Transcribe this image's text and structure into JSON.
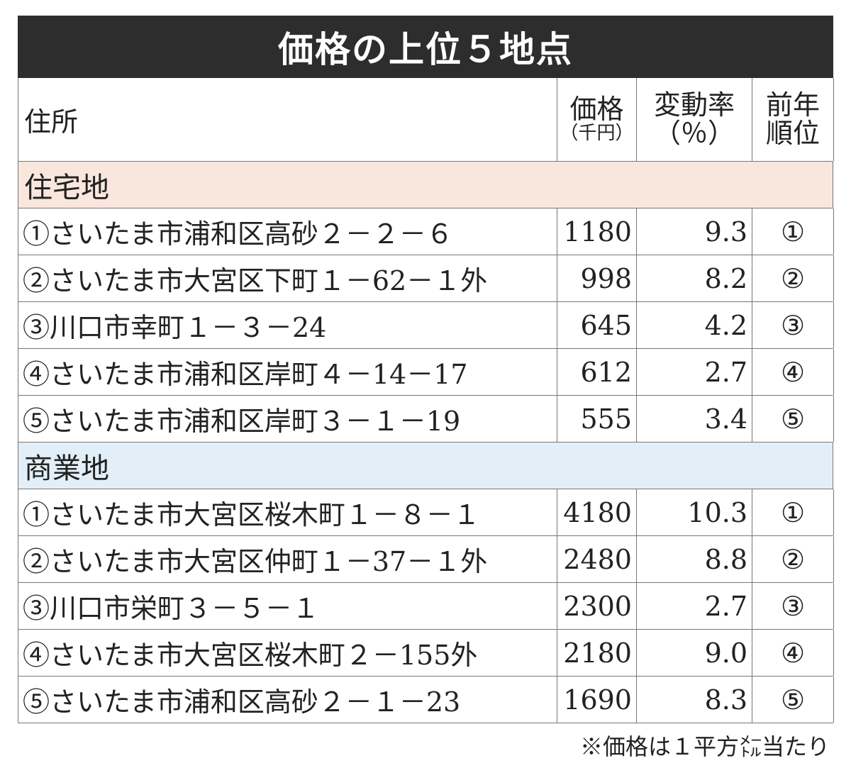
{
  "title": "価格の上位５地点",
  "header": {
    "address": "住所",
    "price": "価格",
    "price_unit": "（千円）",
    "rate": "変動率",
    "rate_unit": "（％）",
    "rank_line1": "前年",
    "rank_line2": "順位"
  },
  "sections": [
    {
      "name": "住宅地",
      "rows": [
        [
          "①さいたま市浦和区高砂２－２－６",
          "1180",
          "9.3",
          "①"
        ],
        [
          "②さいたま市大宮区下町１－62－１外",
          "998",
          "8.2",
          "②"
        ],
        [
          "③川口市幸町１－３－24",
          "645",
          "4.2",
          "③"
        ],
        [
          "④さいたま市浦和区岸町４－14－17",
          "612",
          "2.7",
          "④"
        ],
        [
          "⑤さいたま市浦和区岸町３－１－19",
          "555",
          "3.4",
          "⑤"
        ]
      ]
    },
    {
      "name": "商業地",
      "rows": [
        [
          "①さいたま市大宮区桜木町１－８－１",
          "4180",
          "10.3",
          "①"
        ],
        [
          "②さいたま市大宮区仲町１－37－１外",
          "2480",
          "8.8",
          "②"
        ],
        [
          "③川口市栄町３－５－１",
          "2300",
          "2.7",
          "③"
        ],
        [
          "④さいたま市大宮区桜木町２－155外",
          "2180",
          "9.0",
          "④"
        ],
        [
          "⑤さいたま市浦和区高砂２－１－23",
          "1690",
          "8.3",
          "⑤"
        ]
      ]
    }
  ],
  "footnote": "※価格は１平方㍍当たり"
}
